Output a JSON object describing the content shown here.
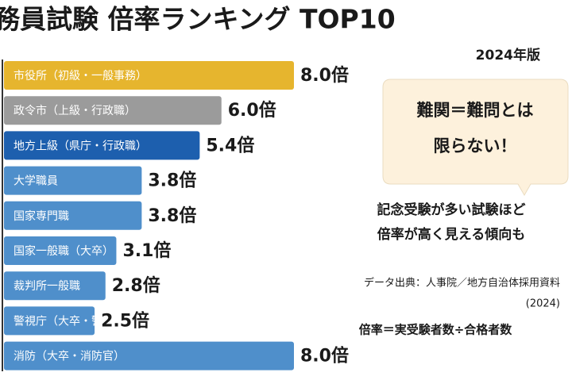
{
  "chart_data": {
    "type": "bar",
    "orientation": "horizontal",
    "title": "務員試験 倍率ランキング TOP10",
    "subtitle": "2024年版",
    "categories": [
      "市役所（初級・一般事務）",
      "政令市（上級・行政職）",
      "地方上級（県庁・行政職）",
      "大学職員",
      "国家専門職",
      "国家一般職（大卒）",
      "裁判所一般職",
      "警視庁（大卒・警察）",
      "消防（大卒・消防官）"
    ],
    "values": [
      8.0,
      6.0,
      5.4,
      3.8,
      3.8,
      3.1,
      2.8,
      2.5,
      8.0
    ],
    "value_labels": [
      "8.0倍",
      "6.0倍",
      "5.4倍",
      "3.8倍",
      "3.8倍",
      "3.1倍",
      "2.8倍",
      "2.5倍",
      "8.0倍"
    ],
    "colors": [
      "#e6b52e",
      "#9b9b9b",
      "#1d5fae",
      "#4f8fcb",
      "#4f8fcb",
      "#4f8fcb",
      "#4f8fcb",
      "#4f8fcb",
      "#4f8fcb"
    ],
    "callout": [
      "難関＝難問とは",
      "限らない！"
    ],
    "note": [
      "記念受験が多い試験ほど",
      "倍率が高く見える傾向も"
    ],
    "source": [
      "データ出典：人事院／地方自治体採用資料",
      "(2024)"
    ],
    "formula": "倍率＝実受験者数÷合格者数"
  }
}
